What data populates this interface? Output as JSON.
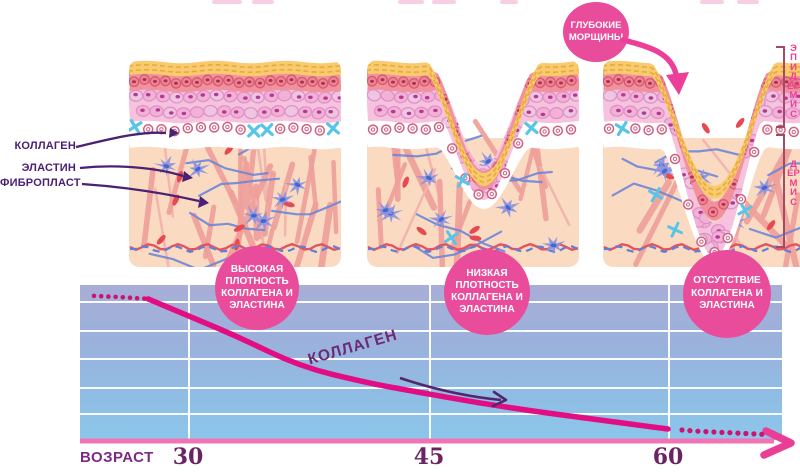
{
  "skin_labels": {
    "collagen": "КОЛЛАГЕН",
    "elastin": "ЭЛАСТИН",
    "fibroblast": "ФИБРОПЛАСТ"
  },
  "layer_labels": {
    "epidermis": "ЭПИДЕРМИС",
    "dermis": "ДЕРМИС"
  },
  "callout_deep_wrinkles": {
    "lines": [
      "ГЛУБОКИЕ",
      "МОРЩИНЫ"
    ]
  },
  "density_bubbles": [
    {
      "lines": [
        "ВЫСОКАЯ",
        "ПЛОТНОСТЬ",
        "КОЛЛАГЕНА И",
        "ЭЛАСТИНА"
      ]
    },
    {
      "lines": [
        "НИЗКАЯ",
        "ПЛОТНОСТЬ",
        "КОЛЛАГЕНА И",
        "ЭЛАСТИНА"
      ]
    },
    {
      "lines": [
        "ОТСУТСТВИЕ",
        "КОЛЛАГЕНА И",
        "ЭЛАСТИНА"
      ]
    }
  ],
  "chart_data": {
    "type": "line",
    "xlabel": "ВОЗРАСТ",
    "x_ticks": [
      "30",
      "45",
      "60"
    ],
    "ylim": [
      0,
      100
    ],
    "grid": {
      "horizontal_lines": 5,
      "vertical_line_ages": [
        30,
        45,
        60
      ]
    },
    "series": [
      {
        "name": "КОЛЛАГЕН",
        "points": [
          [
            24,
            93
          ],
          [
            26,
            92
          ],
          [
            27.5,
            91
          ],
          [
            30,
            80
          ],
          [
            33,
            67
          ],
          [
            37,
            47
          ],
          [
            41,
            37
          ],
          [
            43,
            33
          ],
          [
            49.5,
            21
          ],
          [
            56,
            12
          ],
          [
            60,
            6.5
          ],
          [
            62,
            5
          ],
          [
            66,
            3
          ]
        ],
        "solid_range": [
          27.5,
          60
        ],
        "dotted_before_age": 27.5,
        "dotted_after_age": 60
      }
    ]
  },
  "colors": {
    "accent_pink": "#ea4c9c",
    "curve_magenta": "#e20c83",
    "label_purple": "#4b2173",
    "axis_number_purple": "#6b2364",
    "chart_gradient_top": "#a8aed7",
    "chart_gradient_bottom": "#8cc6ea",
    "epidermis_label_pink": "#ee3d92"
  }
}
